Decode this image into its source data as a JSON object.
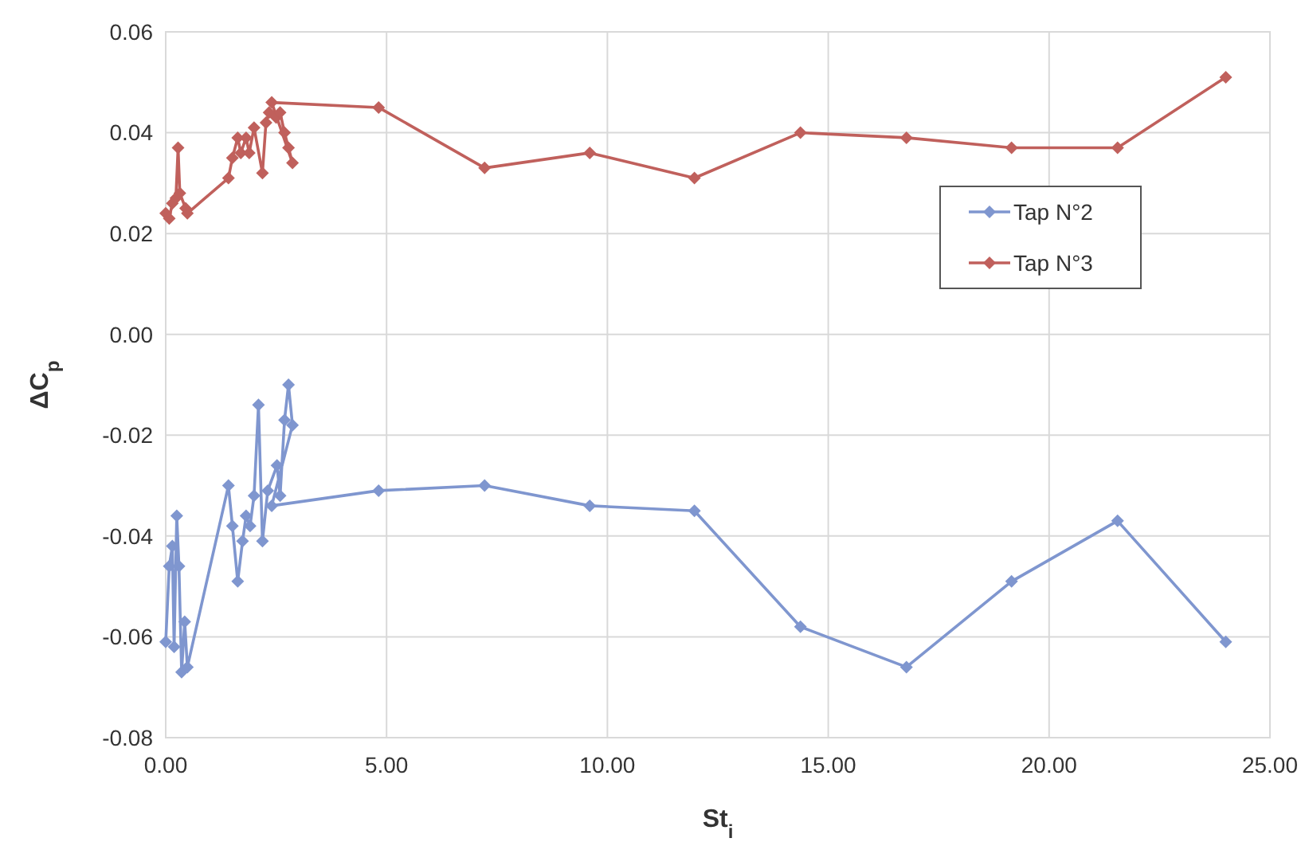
{
  "chart_data": {
    "type": "line",
    "xlabel": "St$_{i}$",
    "ylabel": "ΔC$_{p}$",
    "xlim": [
      0,
      25
    ],
    "xticks": [
      {
        "value": 0,
        "label": "0.00"
      },
      {
        "value": 5,
        "label": "5.00"
      },
      {
        "value": 10,
        "label": "10.00"
      },
      {
        "value": 15,
        "label": "15.00"
      },
      {
        "value": 20,
        "label": "20.00"
      },
      {
        "value": 25,
        "label": "25.00"
      }
    ],
    "ylim": [
      -0.08,
      0.06
    ],
    "yticks": [
      {
        "value": -0.08,
        "label": "-0.08"
      },
      {
        "value": -0.06,
        "label": "-0.06"
      },
      {
        "value": -0.04,
        "label": "-0.04"
      },
      {
        "value": -0.02,
        "label": "-0.02"
      },
      {
        "value": 0,
        "label": "0.00"
      },
      {
        "value": 0.02,
        "label": "0.02"
      },
      {
        "value": 0.04,
        "label": "0.04"
      },
      {
        "value": 0.06,
        "label": "0.06"
      }
    ],
    "grid": true,
    "legend": "right",
    "marker": "diamond",
    "line_style": "solid",
    "series": [
      {
        "name": "Tap N°2",
        "color": "#7f96cf",
        "x": [
          0,
          0.08,
          0.15,
          0.19,
          0.25,
          0.3,
          0.36,
          0.43,
          0.49,
          1.42,
          1.51,
          1.63,
          1.74,
          1.82,
          1.91,
          2.0,
          2.1,
          2.19,
          2.31,
          2.52,
          2.59,
          2.69,
          2.78,
          2.87,
          2.4,
          4.82,
          7.22,
          9.6,
          11.97,
          14.37,
          16.77,
          19.15,
          21.55,
          24.0
        ],
        "values": [
          -0.061,
          -0.046,
          -0.042,
          -0.062,
          -0.036,
          -0.046,
          -0.067,
          -0.057,
          -0.066,
          -0.03,
          -0.038,
          -0.049,
          -0.041,
          -0.036,
          -0.038,
          -0.032,
          -0.014,
          -0.041,
          -0.031,
          -0.026,
          -0.032,
          -0.017,
          -0.01,
          -0.018,
          -0.034,
          -0.031,
          -0.03,
          -0.034,
          -0.035,
          -0.058,
          -0.066,
          -0.049,
          -0.037,
          -0.061
        ]
      },
      {
        "name": "Tap N°3",
        "color": "#c0605c",
        "x": [
          0,
          0.08,
          0.15,
          0.23,
          0.28,
          0.32,
          0.45,
          0.49,
          1.42,
          1.51,
          1.63,
          1.7,
          1.82,
          1.89,
          2.0,
          2.19,
          2.27,
          2.34,
          2.5,
          2.59,
          2.69,
          2.78,
          2.87,
          2.4,
          4.82,
          7.22,
          9.6,
          11.97,
          14.37,
          16.77,
          19.15,
          21.55,
          24.0
        ],
        "values": [
          0.024,
          0.023,
          0.026,
          0.027,
          0.037,
          0.028,
          0.025,
          0.024,
          0.031,
          0.035,
          0.039,
          0.036,
          0.039,
          0.036,
          0.041,
          0.032,
          0.042,
          0.044,
          0.043,
          0.044,
          0.04,
          0.037,
          0.034,
          0.046,
          0.045,
          0.033,
          0.036,
          0.031,
          0.04,
          0.039,
          0.037,
          0.037,
          0.051
        ]
      }
    ]
  }
}
